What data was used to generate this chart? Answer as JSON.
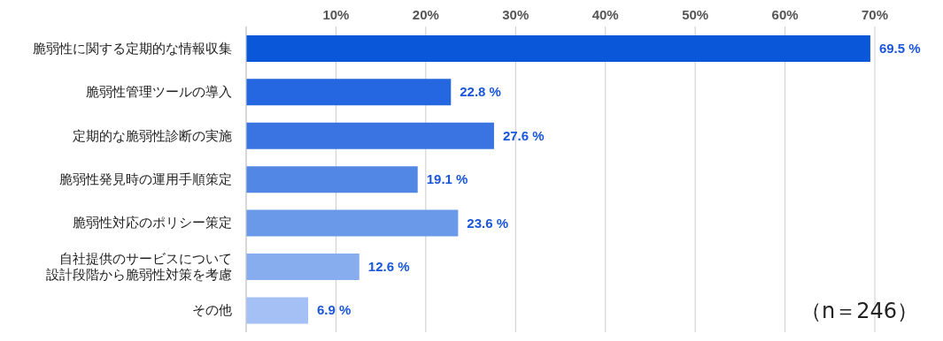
{
  "chart_data": {
    "type": "bar",
    "orientation": "horizontal",
    "categories": [
      "脆弱性に関する定期的な情報収集",
      "脆弱性管理ツールの導入",
      "定期的な脆弱性診断の実施",
      "脆弱性発見時の運用手順策定",
      "脆弱性対応のポリシー策定",
      "自社提供のサービスについて設計段階から脆弱性対策を考慮",
      "その他"
    ],
    "values": [
      69.5,
      22.8,
      27.6,
      19.1,
      23.6,
      12.6,
      6.9
    ],
    "colors": [
      "#0b57d9",
      "#2567e0",
      "#3a74e3",
      "#5287e6",
      "#6b99ea",
      "#87adee",
      "#a4c0f4"
    ],
    "value_labels": [
      "69.5 %",
      "22.8 %",
      "27.6 %",
      "19.1 %",
      "23.6 %",
      "12.6 %",
      "6.9 %"
    ],
    "xlim": [
      0,
      70
    ],
    "xticks": [
      {
        "value": 0,
        "label": null
      },
      {
        "value": 10,
        "label": "10%"
      },
      {
        "value": 20,
        "label": "20%"
      },
      {
        "value": 30,
        "label": "30%"
      },
      {
        "value": 40,
        "label": "40%"
      },
      {
        "value": 50,
        "label": "50%"
      },
      {
        "value": 60,
        "label": "60%"
      },
      {
        "value": 70,
        "label": "70%"
      }
    ],
    "grid": "x",
    "legend": false,
    "annotations": [
      "（n＝246）"
    ]
  }
}
